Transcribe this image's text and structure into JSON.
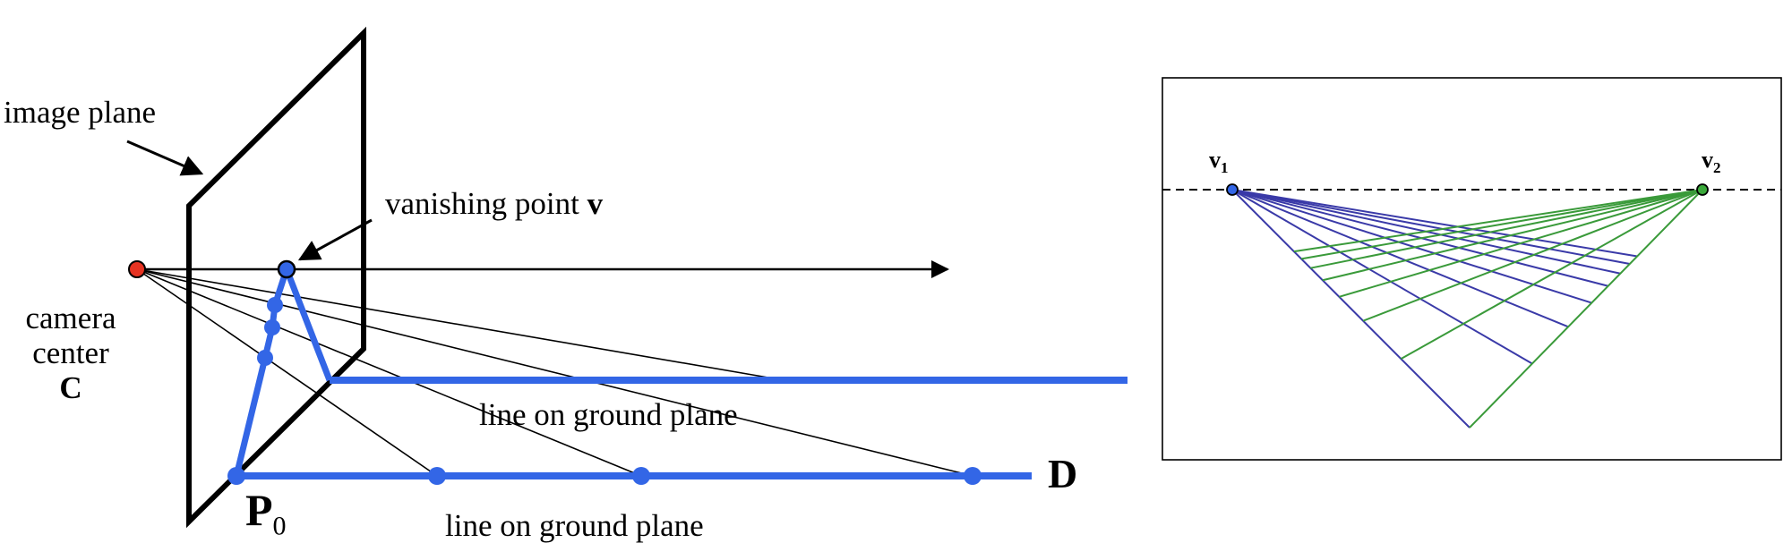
{
  "left_panel": {
    "image_plane_label": "image plane",
    "vanishing_point_label": "vanishing point",
    "vanishing_point_symbol": "v",
    "camera_label_line1": "camera",
    "camera_label_line2": "center",
    "camera_symbol": "C",
    "ground_line_label_upper": "line on ground plane",
    "ground_line_label_lower": "line on ground plane",
    "point_p0_symbol": "P",
    "point_p0_subscript": "0",
    "direction_symbol": "D"
  },
  "right_panel": {
    "v1_symbol": "v",
    "v1_subscript": "1",
    "v2_symbol": "v",
    "v2_subscript": "2"
  },
  "colors": {
    "highlight_blue": "#3366e6",
    "camera_red": "#e63322",
    "grid_blue": "#3a3aa8",
    "grid_green": "#3a9a3a",
    "v1_fill": "#3366e6",
    "v2_fill": "#3aa83a"
  }
}
